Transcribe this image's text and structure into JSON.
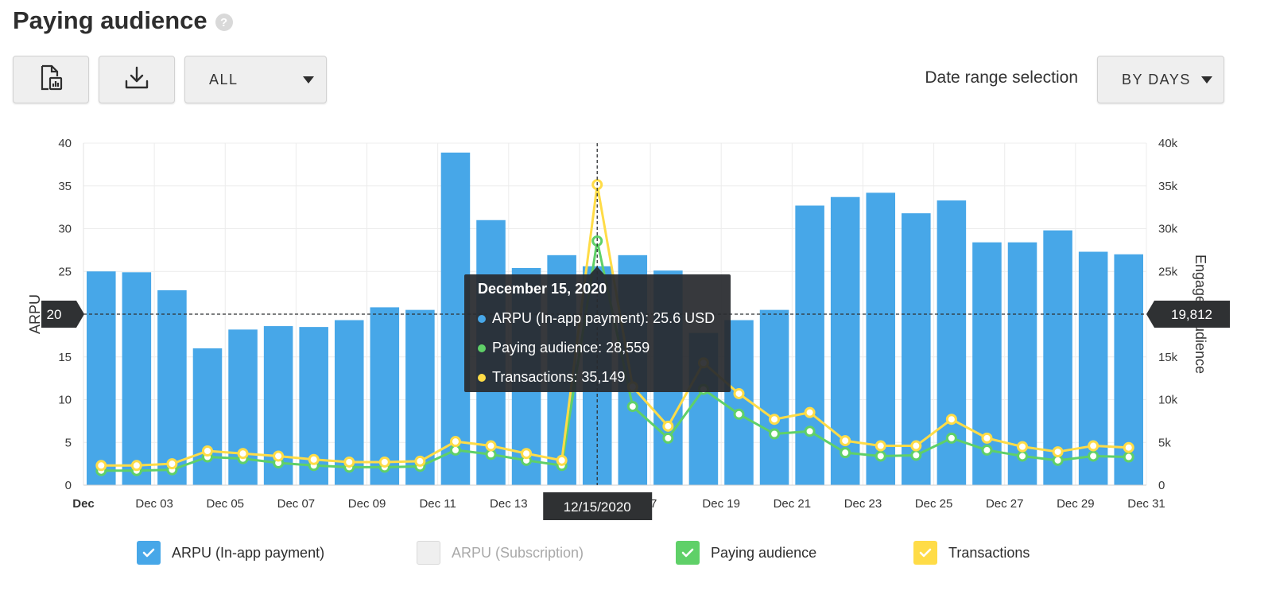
{
  "page": {
    "title": "Paying audience",
    "help_glyph": "?"
  },
  "toolbar": {
    "report_icon": "report-chart-icon",
    "download_icon": "download-icon",
    "filter_value": "ALL",
    "date_range_label": "Date range selection",
    "date_range_value": "BY DAYS"
  },
  "colors": {
    "bars": "#47a7e8",
    "paying": "#5fd068",
    "transactions": "#ffdc47",
    "grid": "#ececec",
    "marker_bg": "#2f3133"
  },
  "chart_data": {
    "type": "bar",
    "x": [
      "Dec 01",
      "Dec 02",
      "Dec 03",
      "Dec 04",
      "Dec 05",
      "Dec 06",
      "Dec 07",
      "Dec 08",
      "Dec 09",
      "Dec 10",
      "Dec 11",
      "Dec 12",
      "Dec 13",
      "Dec 14",
      "Dec 15",
      "Dec 16",
      "Dec 17",
      "Dec 18",
      "Dec 19",
      "Dec 20",
      "Dec 21",
      "Dec 22",
      "Dec 23",
      "Dec 24",
      "Dec 25",
      "Dec 26",
      "Dec 27",
      "Dec 28",
      "Dec 29",
      "Dec 30",
      "Dec 31"
    ],
    "x_tick_labels": [
      "Dec",
      "Dec 03",
      "Dec 05",
      "Dec 07",
      "Dec 09",
      "Dec 11",
      "Dec 13",
      "Dec 15",
      "17",
      "Dec 19",
      "Dec 21",
      "Dec 23",
      "Dec 25",
      "Dec 27",
      "Dec 29",
      "Dec 31"
    ],
    "y_left": {
      "label": "ARPU",
      "ticks": [
        "0",
        "5",
        "10",
        "15",
        "20",
        "25",
        "30",
        "35",
        "40"
      ],
      "range": [
        0,
        40
      ]
    },
    "y_right": {
      "label": "Engaged audience",
      "ticks": [
        "0",
        "5k",
        "10k",
        "15k",
        "20k",
        "25k",
        "30k",
        "35k",
        "40k"
      ],
      "range": [
        0,
        40000
      ]
    },
    "series": [
      {
        "name": "ARPU (In-app payment)",
        "kind": "bar",
        "axis": "left",
        "values": [
          25.0,
          24.9,
          22.8,
          16.0,
          18.2,
          18.6,
          18.5,
          19.3,
          20.8,
          20.5,
          38.9,
          31.0,
          25.4,
          26.9,
          25.6,
          26.9,
          25.1,
          17.8,
          19.3,
          20.5,
          32.7,
          33.7,
          34.2,
          31.8,
          33.3,
          28.4,
          28.4,
          29.8,
          27.3,
          27.0,
          null
        ]
      },
      {
        "name": "Paying audience",
        "kind": "line",
        "axis": "right",
        "values": [
          1700,
          1700,
          1800,
          3300,
          3100,
          2600,
          2300,
          2100,
          2100,
          2200,
          4100,
          3600,
          2900,
          2300,
          28559,
          9200,
          5500,
          11200,
          8300,
          6000,
          6300,
          3800,
          3400,
          3500,
          5500,
          4100,
          3400,
          2900,
          3400,
          3300,
          null
        ]
      },
      {
        "name": "Transactions",
        "kind": "line",
        "axis": "right",
        "values": [
          2300,
          2300,
          2500,
          4000,
          3700,
          3400,
          3000,
          2700,
          2700,
          2800,
          5100,
          4600,
          3700,
          2900,
          35149,
          11500,
          6900,
          14300,
          10700,
          7700,
          8500,
          5200,
          4600,
          4600,
          7700,
          5500,
          4500,
          3900,
          4600,
          4400,
          null
        ]
      }
    ],
    "crosshair": {
      "date": "12/15/2020",
      "left_value": "20",
      "right_value": "19,812"
    },
    "tooltip": {
      "title": "December 15, 2020",
      "rows": [
        {
          "label": "ARPU (In-app payment): 25.6 USD",
          "color": "#47a7e8"
        },
        {
          "label": "Paying audience: 28,559",
          "color": "#5fd068"
        },
        {
          "label": "Transactions: 35,149",
          "color": "#ffdc47"
        }
      ]
    },
    "grid": true,
    "legend_position": "bottom"
  },
  "legend": [
    {
      "label": "ARPU (In-app payment)",
      "checked": true,
      "color": "#47a7e8",
      "muted": false
    },
    {
      "label": "ARPU (Subscription)",
      "checked": false,
      "color": "#efefef",
      "muted": true
    },
    {
      "label": "Paying audience",
      "checked": true,
      "color": "#5fd068",
      "muted": false
    },
    {
      "label": "Transactions",
      "checked": true,
      "color": "#ffdc47",
      "muted": false
    }
  ]
}
